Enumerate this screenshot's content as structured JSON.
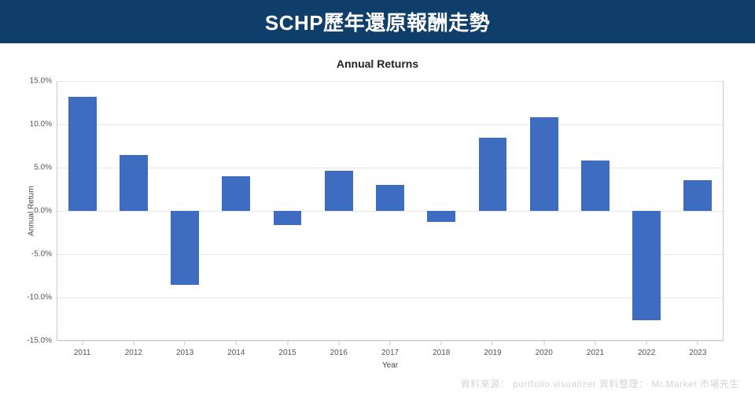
{
  "header": {
    "title": "SCHP歷年還原報酬走勢",
    "bg_color": "#0f3e6b",
    "text_color": "#ffffff",
    "fontsize": 26
  },
  "chart": {
    "type": "bar",
    "title": "Annual Returns",
    "title_fontsize": 14,
    "title_color": "#222222",
    "xlabel": "Year",
    "ylabel": "Annual Return",
    "label_fontsize": 10,
    "categories": [
      "2011",
      "2012",
      "2013",
      "2014",
      "2015",
      "2016",
      "2017",
      "2018",
      "2019",
      "2020",
      "2021",
      "2022",
      "2023"
    ],
    "values": [
      13.2,
      6.4,
      -8.6,
      4.0,
      -1.7,
      4.6,
      3.0,
      -1.3,
      8.4,
      10.8,
      5.8,
      -12.7,
      3.5
    ],
    "bar_color": "#3d6cc0",
    "ylim": [
      -15,
      15
    ],
    "ytick_step": 5,
    "ytick_format": "percent_one_decimal",
    "background_color": "#ffffff",
    "grid_color": "#e6e6e6",
    "axis_color": "#c9c9c9",
    "tick_color": "#555555",
    "bar_width_ratio": 0.55
  },
  "footer": {
    "text": "資料來源： portfolio visualizer   資料整理： Mr.Market 市場先生",
    "color": "#d5d5d5",
    "fontsize": 12
  }
}
